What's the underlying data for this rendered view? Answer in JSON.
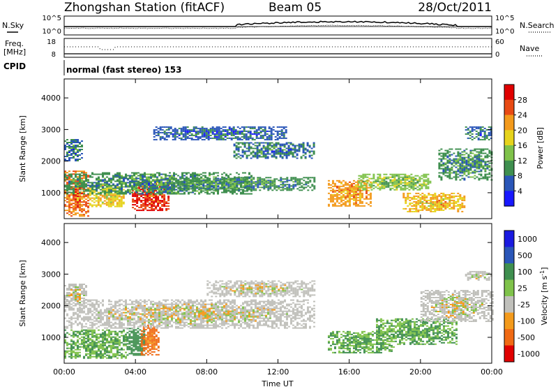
{
  "header": {
    "station": "Zhongshan Station (fitACF)",
    "beam": "Beam 05",
    "date": "28/Oct/2011",
    "mode": "normal (fast stereo) 153"
  },
  "side_labels": {
    "nsky": "N.Sky",
    "nsearch": "N.Search",
    "freq_line1": "Freq.",
    "freq_line2": "[MHz]",
    "nave": "Nave",
    "cpid": "CPID"
  },
  "noise_panel": {
    "left_ticks": [
      "10^5",
      "10^0"
    ],
    "right_ticks": [
      "10^5",
      "10^0"
    ]
  },
  "freq_panel": {
    "left_ticks": [
      "18",
      "8"
    ],
    "right_ticks": [
      "60",
      "0"
    ]
  },
  "chart_data": [
    {
      "type": "heatmap",
      "panel": "power",
      "xlabel": "Time UT",
      "ylabel": "Slant Range [km]",
      "xlim": [
        0,
        24
      ],
      "ylim": [
        180,
        4600
      ],
      "x_ticks": [
        "00:00",
        "04:00",
        "08:00",
        "12:00",
        "16:00",
        "20:00",
        "00:00"
      ],
      "y_ticks": [
        1000,
        2000,
        3000,
        4000
      ],
      "colorbar": {
        "label": "Power [dB]",
        "ticks": [
          4,
          8,
          12,
          16,
          20,
          24,
          28
        ],
        "colors": [
          "#1818ff",
          "#2a56b8",
          "#3f8f4f",
          "#7fc24a",
          "#e6d31c",
          "#f39a1c",
          "#e84a14",
          "#e00000"
        ]
      },
      "regions": [
        {
          "t": [
            0.0,
            1.4
          ],
          "r": [
            250,
            1700
          ],
          "v": 22
        },
        {
          "t": [
            1.4,
            3.3
          ],
          "r": [
            550,
            1250
          ],
          "v": 17
        },
        {
          "t": [
            3.8,
            5.9
          ],
          "r": [
            450,
            1350
          ],
          "v": 26
        },
        {
          "t": [
            0.0,
            10.5
          ],
          "r": [
            950,
            1650
          ],
          "v": 8
        },
        {
          "t": [
            6.0,
            14.0
          ],
          "r": [
            1100,
            1500
          ],
          "v": 8
        },
        {
          "t": [
            9.5,
            14.0
          ],
          "r": [
            2100,
            2600
          ],
          "v": 6
        },
        {
          "t": [
            14.8,
            17.2
          ],
          "r": [
            600,
            1400
          ],
          "v": 20
        },
        {
          "t": [
            16.5,
            20.5
          ],
          "r": [
            1100,
            1600
          ],
          "v": 12
        },
        {
          "t": [
            19.0,
            22.5
          ],
          "r": [
            400,
            1000
          ],
          "v": 18
        },
        {
          "t": [
            21.0,
            24.0
          ],
          "r": [
            1400,
            2400
          ],
          "v": 8
        },
        {
          "t": [
            22.5,
            24.0
          ],
          "r": [
            2700,
            3100
          ],
          "v": 6
        },
        {
          "t": [
            0.0,
            1.0
          ],
          "r": [
            2000,
            2700
          ],
          "v": 6
        },
        {
          "t": [
            5.0,
            12.5
          ],
          "r": [
            2700,
            3100
          ],
          "v": 5
        }
      ]
    },
    {
      "type": "heatmap",
      "panel": "velocity",
      "xlabel": "Time UT",
      "ylabel": "Slant Range [km]",
      "xlim": [
        0,
        24
      ],
      "ylim": [
        180,
        4600
      ],
      "x_ticks": [
        "00:00",
        "04:00",
        "08:00",
        "12:00",
        "16:00",
        "20:00",
        "00:00"
      ],
      "y_ticks": [
        1000,
        2000,
        3000,
        4000
      ],
      "colorbar": {
        "label": "Velocity [m s^-1]",
        "ticks": [
          "1000",
          "500",
          "100",
          "25",
          "-25",
          "-100",
          "-500",
          "-1000"
        ],
        "colors": [
          "#1a1ae0",
          "#2a56b8",
          "#3f8f4f",
          "#7fc24a",
          "#c0c0bb",
          "#f39a1c",
          "#f06a14",
          "#e00000"
        ]
      },
      "regions": [
        {
          "t": [
            0.0,
            3.5
          ],
          "r": [
            350,
            1250
          ],
          "v": 100
        },
        {
          "t": [
            3.5,
            4.5
          ],
          "r": [
            450,
            1300
          ],
          "v": 150
        },
        {
          "t": [
            4.3,
            5.3
          ],
          "r": [
            450,
            1400
          ],
          "v": -120
        },
        {
          "t": [
            0.0,
            14.0
          ],
          "r": [
            1300,
            2200
          ],
          "v": 0
        },
        {
          "t": [
            8.0,
            14.0
          ],
          "r": [
            2300,
            2800
          ],
          "v": 0
        },
        {
          "t": [
            14.8,
            18.5
          ],
          "r": [
            500,
            1200
          ],
          "v": 100
        },
        {
          "t": [
            17.5,
            22.0
          ],
          "r": [
            800,
            1600
          ],
          "v": 100
        },
        {
          "t": [
            20.0,
            24.0
          ],
          "r": [
            1500,
            2500
          ],
          "v": 0
        },
        {
          "t": [
            22.5,
            24.0
          ],
          "r": [
            2800,
            3100
          ],
          "v": 0
        },
        {
          "t": [
            0.0,
            1.2
          ],
          "r": [
            2000,
            2700
          ],
          "v": 0
        }
      ]
    }
  ]
}
